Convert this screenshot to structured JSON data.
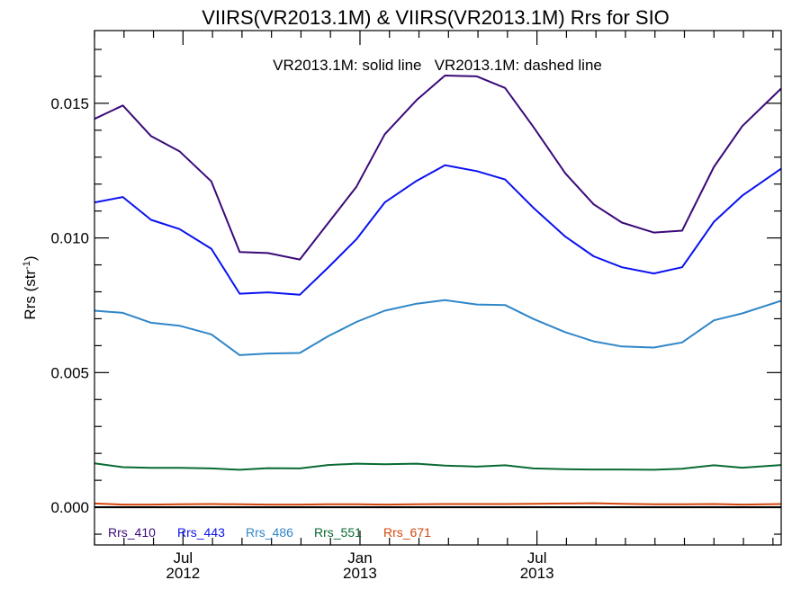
{
  "chart_data": {
    "type": "line",
    "title": "VIIRS(VR2013.1M) & VIIRS(VR2013.1M)  Rrs for SIO",
    "annotation": "VR2013.1M: solid line   VR2013.1M: dashed line",
    "ylabel": "Rrs (str",
    "ylabel_sup": "-1",
    "ylabel_close": ")",
    "ylim": [
      -0.0014,
      0.0177
    ],
    "xlim": [
      2012.25,
      2014.19
    ],
    "yticks": [
      0.0,
      0.005,
      0.01,
      0.015
    ],
    "ytick_labels": [
      "0.000",
      "0.005",
      "0.010",
      "0.015"
    ],
    "xticks": [
      {
        "value": 2012.5,
        "month": "Jul",
        "year": "2012"
      },
      {
        "value": 2013.0,
        "month": "Jan",
        "year": "2013"
      },
      {
        "value": 2013.5,
        "month": "Jul",
        "year": "2013"
      }
    ],
    "x": [
      2012.25,
      2012.33,
      2012.41,
      2012.49,
      2012.58,
      2012.66,
      2012.74,
      2012.83,
      2012.91,
      2012.99,
      2013.07,
      2013.16,
      2013.24,
      2013.33,
      2013.41,
      2013.49,
      2013.58,
      2013.66,
      2013.74,
      2013.83,
      2013.91,
      2014.0,
      2014.08,
      2014.19
    ],
    "series": [
      {
        "name": "Rrs_410",
        "color": "#3a0a78",
        "values": [
          0.01442,
          0.01492,
          0.01378,
          0.01322,
          0.0121,
          0.00948,
          0.00944,
          0.0092,
          0.01055,
          0.0119,
          0.01385,
          0.01512,
          0.01603,
          0.016,
          0.01557,
          0.01412,
          0.0124,
          0.01125,
          0.01057,
          0.0102,
          0.01027,
          0.01264,
          0.01415,
          0.01555
        ]
      },
      {
        "name": "Rrs_443",
        "color": "#0a12f0",
        "values": [
          0.01132,
          0.01152,
          0.01067,
          0.01033,
          0.0096,
          0.00793,
          0.00798,
          0.00789,
          0.0089,
          0.00995,
          0.01132,
          0.01212,
          0.0127,
          0.01248,
          0.01217,
          0.01112,
          0.01005,
          0.00932,
          0.00891,
          0.00868,
          0.00891,
          0.0106,
          0.01157,
          0.01257
        ]
      },
      {
        "name": "Rrs_486",
        "color": "#2f86c8",
        "values": [
          0.0073,
          0.00722,
          0.00685,
          0.00674,
          0.00642,
          0.00565,
          0.00571,
          0.00573,
          0.00635,
          0.00688,
          0.0073,
          0.00756,
          0.00769,
          0.00753,
          0.00751,
          0.00699,
          0.0065,
          0.00616,
          0.00597,
          0.00593,
          0.00612,
          0.00694,
          0.0072,
          0.00767
        ]
      },
      {
        "name": "Rrs_551",
        "color": "#0a6a32",
        "values": [
          0.00163,
          0.00149,
          0.00146,
          0.00146,
          0.00144,
          0.00139,
          0.00145,
          0.00144,
          0.00157,
          0.00162,
          0.0016,
          0.00162,
          0.00155,
          0.00151,
          0.00156,
          0.00144,
          0.00141,
          0.0014,
          0.0014,
          0.00139,
          0.00143,
          0.00156,
          0.00147,
          0.00157
        ]
      },
      {
        "name": "Rrs_671",
        "color": "#d4460c",
        "values": [
          0.00014,
          0.0001,
          0.0001,
          0.00011,
          0.00012,
          0.00011,
          0.0001,
          0.0001,
          0.00011,
          0.00011,
          0.0001,
          0.00011,
          0.00012,
          0.00012,
          0.00012,
          0.00013,
          0.00014,
          0.00015,
          0.00013,
          0.00011,
          0.00011,
          0.00012,
          0.0001,
          0.00012
        ]
      }
    ],
    "zero_line": {
      "value": 0.0,
      "color": "#000000"
    },
    "legend_placement": "bottom-left inside plot",
    "grid": false
  }
}
